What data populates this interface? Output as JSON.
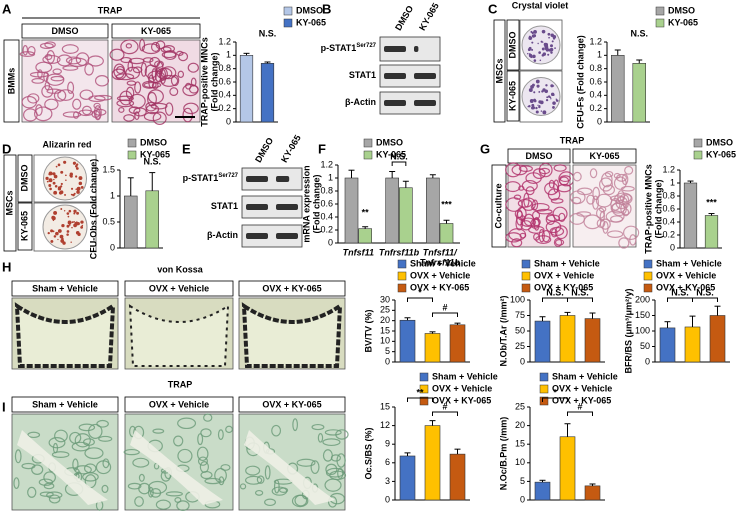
{
  "panels": {
    "A": {
      "letter": "A",
      "title": "TRAP",
      "columns": [
        "DMSO",
        "KY-065"
      ],
      "row": "BMMs"
    },
    "B": {
      "letter": "B",
      "columns": [
        "DMSO",
        "KY-065"
      ],
      "rows": [
        {
          "text": "p-STAT1",
          "sup": "Ser727"
        },
        {
          "text": "STAT1"
        },
        {
          "text": "β-Actin"
        }
      ]
    },
    "C": {
      "letter": "C",
      "title": "Crystal violet",
      "group": "MSCs",
      "rows": [
        "DMSO",
        "KY-065"
      ]
    },
    "D": {
      "letter": "D",
      "title": "Alizarin red",
      "group": "MSCs",
      "rows": [
        "DMSO",
        "KY-065"
      ]
    },
    "E": {
      "letter": "E",
      "columns": [
        "DMSO",
        "KY-065"
      ],
      "rows": [
        {
          "text": "p-STAT1",
          "sup": "Ser727"
        },
        {
          "text": "STAT1"
        },
        {
          "text": "β-Actin"
        }
      ]
    },
    "F": {
      "letter": "F"
    },
    "G": {
      "letter": "G",
      "title": "TRAP",
      "columns": [
        "DMSO",
        "KY-065"
      ],
      "row": "Co-culture"
    },
    "H": {
      "letter": "H",
      "title": "von Kossa",
      "columns": [
        "Sham + Vehicle",
        "OVX + Vehicle",
        "OVX + KY-065"
      ]
    },
    "I": {
      "letter": "I",
      "title": "TRAP",
      "columns": [
        "Sham + Vehicle",
        "OVX + Vehicle",
        "OVX + KY-065"
      ]
    }
  },
  "chart_data": [
    {
      "type": "bar",
      "y_label": [
        "TRAP-positive MNCs",
        "(Fold change)"
      ],
      "ylim": [
        0,
        1.2
      ],
      "yticks": [
        0,
        0.2,
        0.4,
        0.6,
        0.8,
        1,
        1.2
      ],
      "series": [
        {
          "name": "DMSO",
          "color": "#b4c7e7",
          "values": [
            1.0
          ],
          "errors": [
            0.03
          ]
        },
        {
          "name": "KY-065",
          "color": "#4472c4",
          "values": [
            0.88
          ],
          "errors": [
            0.02
          ]
        }
      ],
      "annotations": [
        "N.S."
      ]
    },
    {
      "type": "bar",
      "y_label": [
        "CFU-Fs (Fold change)"
      ],
      "ylim": [
        0,
        1.2
      ],
      "yticks": [
        0,
        0.2,
        0.4,
        0.6,
        0.8,
        1,
        1.2
      ],
      "series": [
        {
          "name": "DMSO",
          "color": "#a6a6a6",
          "values": [
            1.0
          ],
          "errors": [
            0.08
          ]
        },
        {
          "name": "KY-065",
          "color": "#a9d18e",
          "values": [
            0.88
          ],
          "errors": [
            0.05
          ]
        }
      ],
      "annotations": [
        "N.S."
      ]
    },
    {
      "type": "bar",
      "y_label": [
        "CFU-Obs (Fold change)"
      ],
      "ylim": [
        0,
        1.5
      ],
      "yticks": [
        0,
        0.5,
        1,
        1.5
      ],
      "series": [
        {
          "name": "DMSO",
          "color": "#a6a6a6",
          "values": [
            1.0
          ],
          "errors": [
            0.35
          ]
        },
        {
          "name": "KY-065",
          "color": "#a9d18e",
          "values": [
            1.1
          ],
          "errors": [
            0.35
          ]
        }
      ],
      "annotations": [
        "N.S."
      ]
    },
    {
      "type": "bar",
      "y_label": [
        "mRNA expression",
        "(Fold change)"
      ],
      "ylim": [
        0,
        1.2
      ],
      "yticks": [
        0,
        0.2,
        0.4,
        0.6,
        0.8,
        1,
        1.2
      ],
      "categories": [
        [
          "Tnfsf11"
        ],
        [
          "Tnfrsf11b"
        ],
        [
          "Tnfsf11/",
          "Tnfrsf11b"
        ]
      ],
      "series": [
        {
          "name": "DMSO",
          "color": "#a6a6a6",
          "values": [
            1.0,
            1.0,
            1.0
          ],
          "errors": [
            0.12,
            0.1,
            0.05
          ]
        },
        {
          "name": "KY-065",
          "color": "#a9d18e",
          "values": [
            0.22,
            0.85,
            0.3
          ],
          "errors": [
            0.03,
            0.1,
            0.05
          ]
        }
      ],
      "annotations": [
        "**",
        "N.S.",
        "***"
      ]
    },
    {
      "type": "bar",
      "y_label": [
        "TRAP-positive MNCs",
        "(Fold change)"
      ],
      "ylim": [
        0,
        1.2
      ],
      "yticks": [
        0,
        0.2,
        0.4,
        0.6,
        0.8,
        1,
        1.2
      ],
      "series": [
        {
          "name": "DMSO",
          "color": "#a6a6a6",
          "values": [
            1.0
          ],
          "errors": [
            0.03
          ]
        },
        {
          "name": "KY-065",
          "color": "#a9d18e",
          "values": [
            0.5
          ],
          "errors": [
            0.03
          ]
        }
      ],
      "annotations": [
        "***"
      ]
    },
    {
      "type": "bar",
      "y_label": [
        "BV/TV (%)"
      ],
      "ylim": [
        0,
        30
      ],
      "yticks": [
        0,
        5,
        10,
        15,
        20,
        25,
        30
      ],
      "series": [
        {
          "name": "Sham + Vehicle",
          "color": "#4472c4",
          "values": [
            20.2
          ],
          "errors": [
            1.2
          ]
        },
        {
          "name": "OVX + Vehicle",
          "color": "#ffc000",
          "values": [
            13.8
          ],
          "errors": [
            0.8
          ]
        },
        {
          "name": "OVX + KY-065",
          "color": "#c55a11",
          "values": [
            18
          ],
          "errors": [
            0.8
          ]
        }
      ],
      "annotations": [
        "*",
        "#"
      ]
    },
    {
      "type": "bar",
      "y_label": [
        "N.Ob/T.Ar (/mm²)"
      ],
      "ylim": [
        0,
        100
      ],
      "yticks": [
        0,
        25,
        50,
        75,
        100
      ],
      "series": [
        {
          "name": "Sham + Vehicle",
          "color": "#4472c4",
          "values": [
            66
          ],
          "errors": [
            7
          ]
        },
        {
          "name": "OVX + Vehicle",
          "color": "#ffc000",
          "values": [
            75
          ],
          "errors": [
            5
          ]
        },
        {
          "name": "OVX + KY-065",
          "color": "#c55a11",
          "values": [
            70
          ],
          "errors": [
            9
          ]
        }
      ],
      "annotations": [
        "N.S.",
        "N.S."
      ]
    },
    {
      "type": "bar",
      "y_label": [
        "BFR/BS (μm³/μm²/y)"
      ],
      "ylim": [
        0,
        200
      ],
      "yticks": [
        0,
        50,
        100,
        150,
        200
      ],
      "series": [
        {
          "name": "Sham + Vehicle",
          "color": "#4472c4",
          "values": [
            110
          ],
          "errors": [
            20
          ]
        },
        {
          "name": "OVX + Vehicle",
          "color": "#ffc000",
          "values": [
            113
          ],
          "errors": [
            35
          ]
        },
        {
          "name": "OVX + KY-065",
          "color": "#c55a11",
          "values": [
            150
          ],
          "errors": [
            30
          ]
        }
      ],
      "annotations": [
        "N.S.",
        "N.S."
      ]
    },
    {
      "type": "bar",
      "y_label": [
        "Oc.S/BS (%)"
      ],
      "ylim": [
        0,
        15
      ],
      "yticks": [
        0,
        3,
        6,
        9,
        12,
        15
      ],
      "series": [
        {
          "name": "Sham + Vehicle",
          "color": "#4472c4",
          "values": [
            7.1
          ],
          "errors": [
            0.5
          ]
        },
        {
          "name": "OVX + Vehicle",
          "color": "#ffc000",
          "values": [
            12
          ],
          "errors": [
            0.8
          ]
        },
        {
          "name": "OVX + KY-065",
          "color": "#c55a11",
          "values": [
            7.4
          ],
          "errors": [
            0.8
          ]
        }
      ],
      "annotations": [
        "**",
        "#"
      ]
    },
    {
      "type": "bar",
      "y_label": [
        "N.Oc/B.Pm (/mm)"
      ],
      "ylim": [
        0,
        25
      ],
      "yticks": [
        0,
        5,
        10,
        15,
        20,
        25
      ],
      "series": [
        {
          "name": "Sham + Vehicle",
          "color": "#4472c4",
          "values": [
            4.8
          ],
          "errors": [
            0.5
          ]
        },
        {
          "name": "OVX + Vehicle",
          "color": "#ffc000",
          "values": [
            17
          ],
          "errors": [
            3.5
          ]
        },
        {
          "name": "OVX + KY-065",
          "color": "#c55a11",
          "values": [
            3.8
          ],
          "errors": [
            0.5
          ]
        }
      ],
      "annotations": [
        "*",
        "#"
      ]
    }
  ]
}
